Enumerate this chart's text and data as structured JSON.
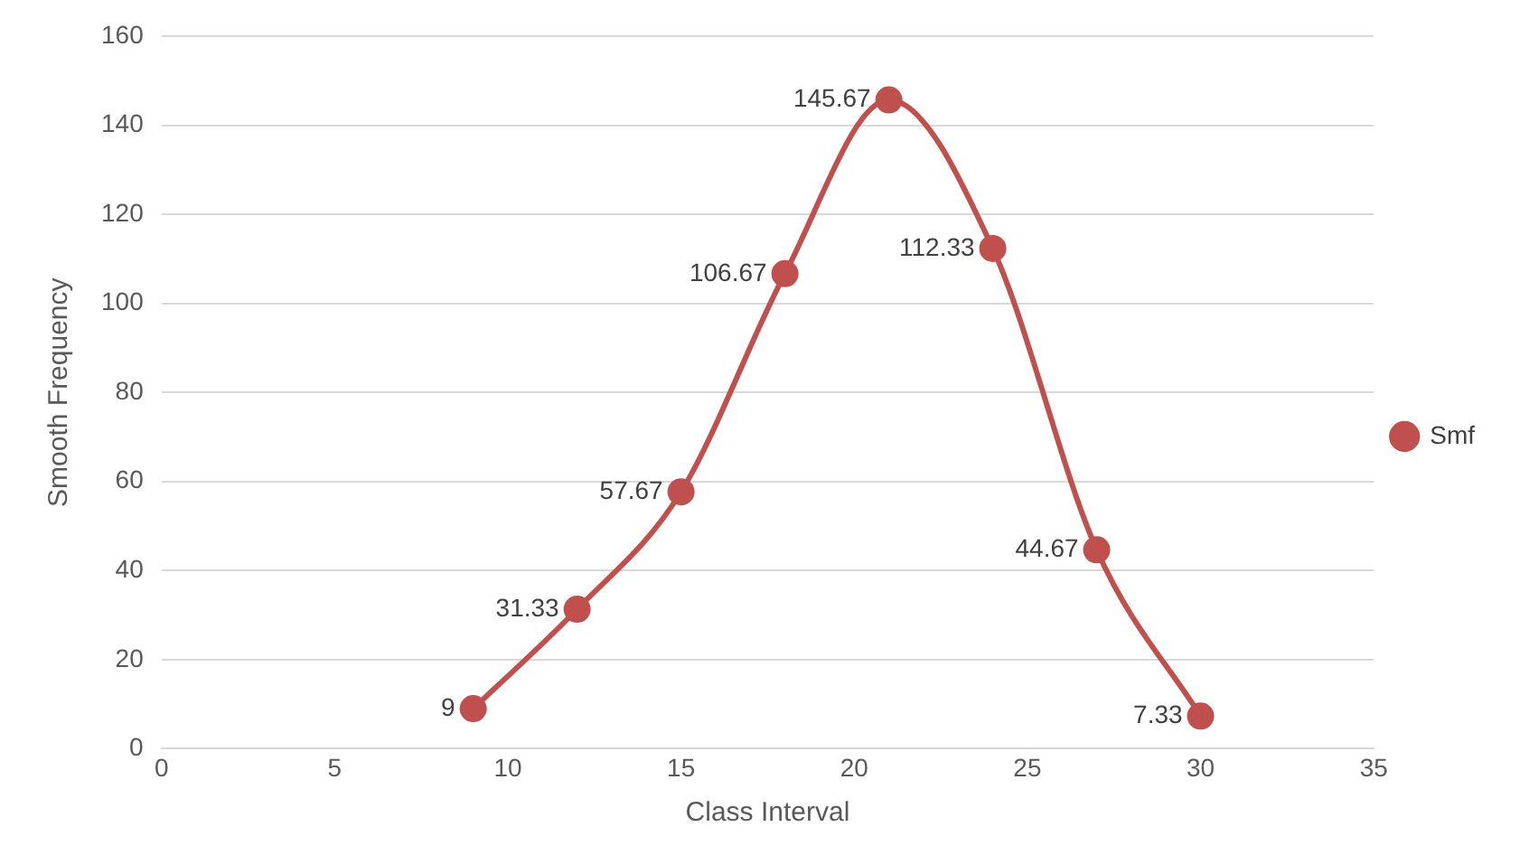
{
  "chart_data": {
    "type": "line",
    "xlabel": "Class Interval",
    "ylabel": "Smooth Frequency",
    "x": [
      9,
      12,
      15,
      18,
      21,
      24,
      27,
      30
    ],
    "series": [
      {
        "name": "Smf",
        "color": "#c0504d",
        "values": [
          9,
          31.33,
          57.67,
          106.67,
          145.67,
          112.33,
          44.67,
          7.33
        ]
      }
    ],
    "xlim": [
      0,
      35
    ],
    "xticks": [
      0,
      5,
      10,
      15,
      20,
      25,
      30,
      35
    ],
    "ylim": [
      0,
      160
    ],
    "yticks": [
      0,
      20,
      40,
      60,
      80,
      100,
      120,
      140,
      160
    ],
    "grid": "y",
    "legend": "right",
    "marker": "circle",
    "line_style": "solid",
    "data_labels": true
  }
}
